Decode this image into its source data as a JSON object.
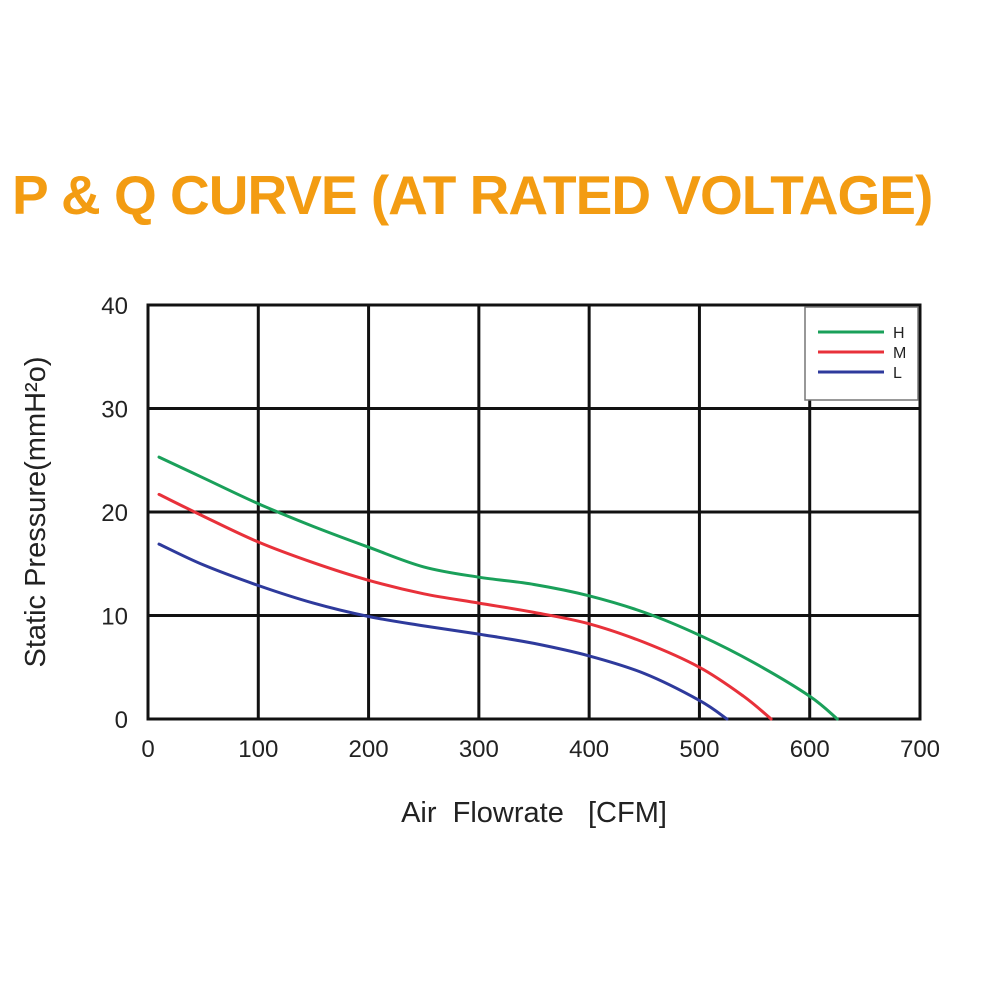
{
  "chart_data": {
    "type": "line",
    "title": "P & Q CURVE (AT RATED VOLTAGE)",
    "xlabel": "Air  Flowrate   [CFM]",
    "ylabel": "Static Pressure(mmH²o)",
    "xlim": [
      0,
      700
    ],
    "ylim": [
      0,
      40
    ],
    "xticks": [
      "0",
      "100",
      "200",
      "300",
      "400",
      "500",
      "600",
      "700"
    ],
    "yticks": [
      "0",
      "10",
      "20",
      "30",
      "40"
    ],
    "grid": true,
    "legend_position": "top-right",
    "series": [
      {
        "name": "H",
        "color": "#1aa05a",
        "x": [
          10,
          50,
          100,
          150,
          200,
          250,
          300,
          350,
          400,
          450,
          500,
          550,
          600,
          625
        ],
        "y": [
          25.3,
          23.3,
          20.8,
          18.6,
          16.6,
          14.7,
          13.7,
          13.0,
          11.9,
          10.3,
          8.1,
          5.4,
          2.2,
          0
        ]
      },
      {
        "name": "M",
        "color": "#e8313a",
        "x": [
          10,
          50,
          100,
          150,
          200,
          250,
          300,
          350,
          400,
          450,
          500,
          540,
          565
        ],
        "y": [
          21.7,
          19.6,
          17.1,
          15.1,
          13.4,
          12.1,
          11.2,
          10.3,
          9.2,
          7.4,
          5.0,
          2.2,
          0
        ]
      },
      {
        "name": "L",
        "color": "#2e3a9c",
        "x": [
          10,
          50,
          100,
          150,
          200,
          250,
          300,
          350,
          400,
          450,
          500,
          525
        ],
        "y": [
          16.9,
          14.9,
          12.9,
          11.2,
          9.9,
          9.0,
          8.2,
          7.3,
          6.1,
          4.4,
          1.8,
          0
        ]
      }
    ]
  }
}
